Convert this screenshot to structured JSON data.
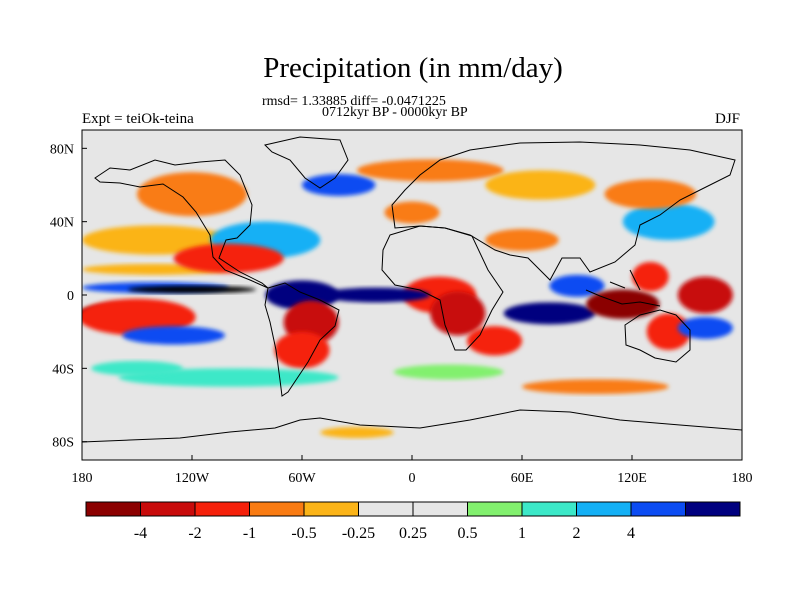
{
  "figure": {
    "title": "Precipitation (in mm/day)",
    "stats": "rmsd= 1.33885 diff= -0.0471225",
    "period": "0712kyr BP - 0000kyr BP",
    "experiment": "Expt = teiOk-teina",
    "season": "DJF"
  },
  "map": {
    "projection": "cylindrical equidistant",
    "lon_range": [
      -180,
      180
    ],
    "lat_range": [
      -90,
      90
    ],
    "background_color": "#e6e6e6",
    "lon_ticks": [
      {
        "value": -180,
        "label": "180"
      },
      {
        "value": -120,
        "label": "120W"
      },
      {
        "value": -60,
        "label": "60W"
      },
      {
        "value": 0,
        "label": "0"
      },
      {
        "value": 60,
        "label": "60E"
      },
      {
        "value": 120,
        "label": "120E"
      },
      {
        "value": 180,
        "label": "180"
      }
    ],
    "lat_ticks": [
      {
        "value": 80,
        "label": "80N"
      },
      {
        "value": 40,
        "label": "40N"
      },
      {
        "value": 0,
        "label": "0"
      },
      {
        "value": -40,
        "label": "40S"
      },
      {
        "value": -80,
        "label": "80S"
      }
    ],
    "anomaly_regions": [
      {
        "lon": -160,
        "lat": -10,
        "rlon": 22,
        "rlat": 5,
        "level": 0
      },
      {
        "lon": -150,
        "lat": -12,
        "rlon": 32,
        "rlat": 10,
        "level": 2
      },
      {
        "lon": -130,
        "lat": -22,
        "rlon": 28,
        "rlat": 5,
        "level": 10
      },
      {
        "lon": -140,
        "lat": 4,
        "rlon": 40,
        "rlat": 3,
        "level": 10
      },
      {
        "lon": -120,
        "lat": 3,
        "rlon": 35,
        "rlat": 2,
        "level": 12
      },
      {
        "lon": -140,
        "lat": 14,
        "rlon": 40,
        "rlat": 3,
        "level": 4
      },
      {
        "lon": -140,
        "lat": 30,
        "rlon": 40,
        "rlat": 8,
        "level": 4
      },
      {
        "lon": -120,
        "lat": 55,
        "rlon": 30,
        "rlat": 12,
        "level": 3
      },
      {
        "lon": -80,
        "lat": 30,
        "rlon": 30,
        "rlat": 10,
        "level": 9
      },
      {
        "lon": -100,
        "lat": 20,
        "rlon": 30,
        "rlat": 8,
        "level": 2
      },
      {
        "lon": -60,
        "lat": 0,
        "rlon": 20,
        "rlat": 8,
        "level": 11
      },
      {
        "lon": -55,
        "lat": -15,
        "rlon": 15,
        "rlat": 12,
        "level": 1
      },
      {
        "lon": -60,
        "lat": -30,
        "rlon": 15,
        "rlat": 10,
        "level": 2
      },
      {
        "lon": -40,
        "lat": 60,
        "rlon": 20,
        "rlat": 6,
        "level": 10
      },
      {
        "lon": 10,
        "lat": 68,
        "rlon": 40,
        "rlat": 6,
        "level": 3
      },
      {
        "lon": 0,
        "lat": 45,
        "rlon": 15,
        "rlat": 6,
        "level": 3
      },
      {
        "lon": 15,
        "lat": 0,
        "rlon": 20,
        "rlat": 10,
        "level": 2
      },
      {
        "lon": 25,
        "lat": -10,
        "rlon": 15,
        "rlat": 12,
        "level": 1
      },
      {
        "lon": 45,
        "lat": -25,
        "rlon": 15,
        "rlat": 8,
        "level": 2
      },
      {
        "lon": -20,
        "lat": 0,
        "rlon": 30,
        "rlat": 4,
        "level": 11
      },
      {
        "lon": 75,
        "lat": -10,
        "rlon": 25,
        "rlat": 6,
        "level": 11
      },
      {
        "lon": 90,
        "lat": 5,
        "rlon": 15,
        "rlat": 6,
        "level": 10
      },
      {
        "lon": 115,
        "lat": -5,
        "rlon": 20,
        "rlat": 8,
        "level": 0
      },
      {
        "lon": 130,
        "lat": 10,
        "rlon": 10,
        "rlat": 8,
        "level": 2
      },
      {
        "lon": 140,
        "lat": -20,
        "rlon": 12,
        "rlat": 10,
        "level": 2
      },
      {
        "lon": 160,
        "lat": 0,
        "rlon": 15,
        "rlat": 10,
        "level": 1
      },
      {
        "lon": 160,
        "lat": -18,
        "rlon": 15,
        "rlat": 6,
        "level": 10
      },
      {
        "lon": 140,
        "lat": 40,
        "rlon": 25,
        "rlat": 10,
        "level": 9
      },
      {
        "lon": 130,
        "lat": 55,
        "rlon": 25,
        "rlat": 8,
        "level": 3
      },
      {
        "lon": -100,
        "lat": -45,
        "rlon": 60,
        "rlat": 5,
        "level": 8
      },
      {
        "lon": 20,
        "lat": -42,
        "rlon": 30,
        "rlat": 4,
        "level": 7
      },
      {
        "lon": -150,
        "lat": -40,
        "rlon": 25,
        "rlat": 4,
        "level": 8
      },
      {
        "lon": 70,
        "lat": 60,
        "rlon": 30,
        "rlat": 8,
        "level": 4
      },
      {
        "lon": 60,
        "lat": 30,
        "rlon": 20,
        "rlat": 6,
        "level": 3
      },
      {
        "lon": -30,
        "lat": -75,
        "rlon": 20,
        "rlat": 3,
        "level": 4
      },
      {
        "lon": 100,
        "lat": -50,
        "rlon": 40,
        "rlat": 4,
        "level": 3
      }
    ]
  },
  "colorbar": {
    "colors": [
      "#8b0000",
      "#c80b0b",
      "#f5200a",
      "#f97b12",
      "#fbb418",
      "#e6e6e6",
      "#e6e6e6",
      "#82f06e",
      "#3ce8c8",
      "#14b0f5",
      "#0c4cf2",
      "#00007f"
    ],
    "labels": [
      "-4",
      "-2",
      "-1",
      "-0.5",
      "-0.25",
      "0.25",
      "0.5",
      "1",
      "2",
      "4"
    ]
  }
}
